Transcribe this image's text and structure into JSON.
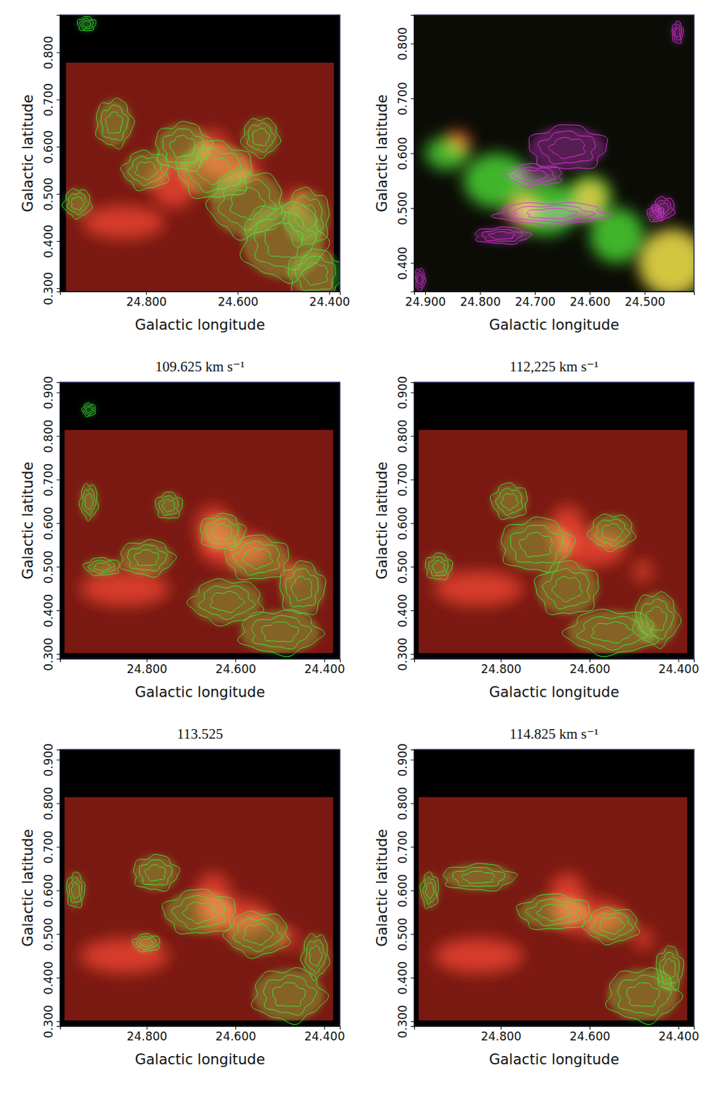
{
  "chart_data": [
    {
      "type": "image",
      "xlabel": "Galactic longitude",
      "ylabel": "Galactic latitude",
      "xlim": [
        24.988,
        24.377
      ],
      "ylim": [
        0.293,
        0.879
      ],
      "xticks": [
        {
          "value": 24.8,
          "label": "24.800"
        },
        {
          "value": 24.6,
          "label": "24.600"
        },
        {
          "value": 24.4,
          "label": "24.400"
        }
      ],
      "yticks": [
        {
          "value": 0.3,
          "label": "0.300"
        },
        {
          "value": 0.4,
          "label": "0.400"
        },
        {
          "value": 0.5,
          "label": "0.500"
        },
        {
          "value": 0.6,
          "label": "0.600"
        },
        {
          "value": 0.7,
          "label": "0.700"
        },
        {
          "value": 0.8,
          "label": "0.800"
        }
      ],
      "series": [
        {
          "type": "image",
          "color": "#7a1912",
          "values": [
            {
              "l": 24.6825,
              "b": 0.5355,
              "rl": 0.2925,
              "rb": 0.2425
            }
          ]
        },
        {
          "type": "glow",
          "color": "#c42a1a",
          "values": [
            {
              "l": 24.655,
              "b": 0.6,
              "rl": 0.035,
              "rb": 0.035
            },
            {
              "l": 24.62,
              "b": 0.555,
              "rl": 0.07,
              "rb": 0.03
            },
            {
              "l": 24.47,
              "b": 0.485,
              "rl": 0.022,
              "rb": 0.025
            },
            {
              "l": 24.74,
              "b": 0.52,
              "rl": 0.05,
              "rb": 0.05
            },
            {
              "l": 24.85,
              "b": 0.44,
              "rl": 0.09,
              "rb": 0.035
            }
          ]
        },
        {
          "type": "contour",
          "color": "#3ae83a",
          "values": [
            {
              "l": 24.72,
              "b": 0.6,
              "rl": 0.06,
              "rb": 0.05
            },
            {
              "l": 24.65,
              "b": 0.55,
              "rl": 0.08,
              "rb": 0.06
            },
            {
              "l": 24.58,
              "b": 0.48,
              "rl": 0.08,
              "rb": 0.07
            },
            {
              "l": 24.5,
              "b": 0.4,
              "rl": 0.09,
              "rb": 0.08
            },
            {
              "l": 24.43,
              "b": 0.33,
              "rl": 0.06,
              "rb": 0.05
            },
            {
              "l": 24.45,
              "b": 0.45,
              "rl": 0.05,
              "rb": 0.06
            },
            {
              "l": 24.95,
              "b": 0.48,
              "rl": 0.03,
              "rb": 0.03
            },
            {
              "l": 24.87,
              "b": 0.65,
              "rl": 0.04,
              "rb": 0.05
            },
            {
              "l": 24.93,
              "b": 0.86,
              "rl": 0.02,
              "rb": 0.015
            },
            {
              "l": 24.8,
              "b": 0.55,
              "rl": 0.05,
              "rb": 0.04
            },
            {
              "l": 24.55,
              "b": 0.62,
              "rl": 0.04,
              "rb": 0.04
            }
          ]
        }
      ]
    },
    {
      "type": "image",
      "xlabel": "Galactic longitude",
      "ylabel": "Galactic latitude",
      "xlim": [
        24.92,
        24.41
      ],
      "ylim": [
        0.348,
        0.852
      ],
      "xticks": [
        {
          "value": 24.9,
          "label": "24.900"
        },
        {
          "value": 24.8,
          "label": "24.800"
        },
        {
          "value": 24.7,
          "label": "24.700"
        },
        {
          "value": 24.6,
          "label": "24.600"
        },
        {
          "value": 24.5,
          "label": "24.500"
        }
      ],
      "yticks": [
        {
          "value": 0.4,
          "label": "0.400"
        },
        {
          "value": 0.5,
          "label": "0.500"
        },
        {
          "value": 0.6,
          "label": "0.600"
        },
        {
          "value": 0.7,
          "label": "0.700"
        },
        {
          "value": 0.8,
          "label": "0.800"
        }
      ],
      "series": [
        {
          "type": "image",
          "color": "#0b0c06",
          "values": [
            {
              "l": 24.665,
              "b": 0.6,
              "rl": 0.255,
              "rb": 0.252
            }
          ]
        },
        {
          "type": "glow",
          "color": "#d8401c",
          "values": [
            {
              "l": 24.84,
              "b": 0.62,
              "rl": 0.022,
              "rb": 0.022
            },
            {
              "l": 24.72,
              "b": 0.5,
              "rl": 0.03,
              "rb": 0.03
            },
            {
              "l": 24.45,
              "b": 0.4,
              "rl": 0.06,
              "rb": 0.06
            },
            {
              "l": 24.6,
              "b": 0.52,
              "rl": 0.03,
              "rb": 0.03
            }
          ]
        },
        {
          "type": "glow",
          "color": "#3cc42a",
          "values": [
            {
              "l": 24.77,
              "b": 0.55,
              "rl": 0.06,
              "rb": 0.05
            },
            {
              "l": 24.68,
              "b": 0.5,
              "rl": 0.06,
              "rb": 0.05
            },
            {
              "l": 24.6,
              "b": 0.52,
              "rl": 0.04,
              "rb": 0.04
            },
            {
              "l": 24.45,
              "b": 0.4,
              "rl": 0.06,
              "rb": 0.06
            },
            {
              "l": 24.55,
              "b": 0.45,
              "rl": 0.05,
              "rb": 0.05
            },
            {
              "l": 24.86,
              "b": 0.6,
              "rl": 0.04,
              "rb": 0.03
            }
          ]
        },
        {
          "type": "contour",
          "color": "#e030e0",
          "values": [
            {
              "l": 24.64,
              "b": 0.61,
              "rl": 0.07,
              "rb": 0.04
            },
            {
              "l": 24.7,
              "b": 0.56,
              "rl": 0.05,
              "rb": 0.02
            },
            {
              "l": 24.67,
              "b": 0.49,
              "rl": 0.1,
              "rb": 0.02
            },
            {
              "l": 24.76,
              "b": 0.45,
              "rl": 0.05,
              "rb": 0.015
            },
            {
              "l": 24.48,
              "b": 0.49,
              "rl": 0.015,
              "rb": 0.015
            },
            {
              "l": 24.465,
              "b": 0.5,
              "rl": 0.02,
              "rb": 0.02
            },
            {
              "l": 24.91,
              "b": 0.37,
              "rl": 0.01,
              "rb": 0.02
            },
            {
              "l": 24.44,
              "b": 0.82,
              "rl": 0.01,
              "rb": 0.02
            }
          ]
        }
      ]
    },
    {
      "type": "image",
      "title": "109.625 km s⁻¹",
      "xlabel": "Galactic longitude",
      "ylabel": "Galactic latitude",
      "xlim": [
        24.995,
        24.365
      ],
      "ylim": [
        0.289,
        0.923
      ],
      "xticks": [
        {
          "value": 24.8,
          "label": "24.800"
        },
        {
          "value": 24.6,
          "label": "24.600"
        },
        {
          "value": 24.4,
          "label": "24.400"
        }
      ],
      "yticks": [
        {
          "value": 0.3,
          "label": "0.300"
        },
        {
          "value": 0.4,
          "label": "0.400"
        },
        {
          "value": 0.5,
          "label": "0.500"
        },
        {
          "value": 0.6,
          "label": "0.600"
        },
        {
          "value": 0.7,
          "label": "0.700"
        },
        {
          "value": 0.8,
          "label": "0.800"
        },
        {
          "value": 0.9,
          "label": "0.900"
        }
      ],
      "series": [
        {
          "type": "image",
          "color": "#7a1912",
          "values": [
            {
              "l": 24.6825,
              "b": 0.558,
              "rl": 0.3025,
              "rb": 0.256
            }
          ]
        },
        {
          "type": "glow",
          "color": "#c42a1a",
          "values": [
            {
              "l": 24.65,
              "b": 0.59,
              "rl": 0.04,
              "rb": 0.05
            },
            {
              "l": 24.48,
              "b": 0.49,
              "rl": 0.02,
              "rb": 0.025
            },
            {
              "l": 24.6,
              "b": 0.54,
              "rl": 0.08,
              "rb": 0.04
            },
            {
              "l": 24.85,
              "b": 0.45,
              "rl": 0.1,
              "rb": 0.04
            }
          ]
        },
        {
          "type": "contour",
          "color": "#3ae83a",
          "values": [
            {
              "l": 24.63,
              "b": 0.58,
              "rl": 0.05,
              "rb": 0.04
            },
            {
              "l": 24.55,
              "b": 0.52,
              "rl": 0.07,
              "rb": 0.05
            },
            {
              "l": 24.62,
              "b": 0.42,
              "rl": 0.08,
              "rb": 0.05
            },
            {
              "l": 24.5,
              "b": 0.35,
              "rl": 0.09,
              "rb": 0.05
            },
            {
              "l": 24.45,
              "b": 0.45,
              "rl": 0.05,
              "rb": 0.06
            },
            {
              "l": 24.9,
              "b": 0.5,
              "rl": 0.04,
              "rb": 0.02
            },
            {
              "l": 24.93,
              "b": 0.65,
              "rl": 0.02,
              "rb": 0.04
            },
            {
              "l": 24.8,
              "b": 0.52,
              "rl": 0.06,
              "rb": 0.04
            },
            {
              "l": 24.75,
              "b": 0.64,
              "rl": 0.03,
              "rb": 0.03
            },
            {
              "l": 24.93,
              "b": 0.86,
              "rl": 0.015,
              "rb": 0.015
            }
          ]
        }
      ]
    },
    {
      "type": "image",
      "title": "112,225 km s⁻¹",
      "xlabel": "Galactic longitude",
      "ylabel": "Galactic latitude",
      "xlim": [
        24.995,
        24.365
      ],
      "ylim": [
        0.289,
        0.923
      ],
      "xticks": [
        {
          "value": 24.8,
          "label": "24.800"
        },
        {
          "value": 24.6,
          "label": "24.600"
        },
        {
          "value": 24.4,
          "label": "24.400"
        }
      ],
      "yticks": [
        {
          "value": 0.3,
          "label": "0.300"
        },
        {
          "value": 0.4,
          "label": "0.400"
        },
        {
          "value": 0.5,
          "label": "0.500"
        },
        {
          "value": 0.6,
          "label": "0.600"
        },
        {
          "value": 0.7,
          "label": "0.700"
        },
        {
          "value": 0.8,
          "label": "0.800"
        },
        {
          "value": 0.9,
          "label": "0.900"
        }
      ],
      "series": [
        {
          "type": "image",
          "color": "#7a1912",
          "values": [
            {
              "l": 24.6825,
              "b": 0.558,
              "rl": 0.3025,
              "rb": 0.256
            }
          ]
        },
        {
          "type": "glow",
          "color": "#c42a1a",
          "values": [
            {
              "l": 24.65,
              "b": 0.59,
              "rl": 0.04,
              "rb": 0.05
            },
            {
              "l": 24.48,
              "b": 0.49,
              "rl": 0.02,
              "rb": 0.025
            },
            {
              "l": 24.6,
              "b": 0.54,
              "rl": 0.08,
              "rb": 0.04
            },
            {
              "l": 24.85,
              "b": 0.45,
              "rl": 0.1,
              "rb": 0.04
            }
          ]
        },
        {
          "type": "contour",
          "color": "#3ae83a",
          "values": [
            {
              "l": 24.72,
              "b": 0.55,
              "rl": 0.08,
              "rb": 0.06
            },
            {
              "l": 24.65,
              "b": 0.45,
              "rl": 0.07,
              "rb": 0.06
            },
            {
              "l": 24.55,
              "b": 0.35,
              "rl": 0.1,
              "rb": 0.05
            },
            {
              "l": 24.45,
              "b": 0.38,
              "rl": 0.05,
              "rb": 0.06
            },
            {
              "l": 24.94,
              "b": 0.5,
              "rl": 0.03,
              "rb": 0.03
            },
            {
              "l": 24.78,
              "b": 0.65,
              "rl": 0.04,
              "rb": 0.04
            },
            {
              "l": 24.55,
              "b": 0.58,
              "rl": 0.05,
              "rb": 0.04
            }
          ]
        }
      ]
    },
    {
      "type": "image",
      "title": "113.525",
      "xlabel": "Galactic longitude",
      "ylabel": "Galactic latitude",
      "xlim": [
        24.995,
        24.365
      ],
      "ylim": [
        0.289,
        0.923
      ],
      "xticks": [
        {
          "value": 24.8,
          "label": "24.800"
        },
        {
          "value": 24.6,
          "label": "24.600"
        },
        {
          "value": 24.4,
          "label": "24.400"
        }
      ],
      "yticks": [
        {
          "value": 0.3,
          "label": "0.300"
        },
        {
          "value": 0.4,
          "label": "0.400"
        },
        {
          "value": 0.5,
          "label": "0.500"
        },
        {
          "value": 0.6,
          "label": "0.600"
        },
        {
          "value": 0.7,
          "label": "0.700"
        },
        {
          "value": 0.8,
          "label": "0.800"
        },
        {
          "value": 0.9,
          "label": "0.900"
        }
      ],
      "series": [
        {
          "type": "image",
          "color": "#7a1912",
          "values": [
            {
              "l": 24.6825,
              "b": 0.558,
              "rl": 0.3025,
              "rb": 0.256
            }
          ]
        },
        {
          "type": "glow",
          "color": "#c42a1a",
          "values": [
            {
              "l": 24.65,
              "b": 0.59,
              "rl": 0.04,
              "rb": 0.05
            },
            {
              "l": 24.48,
              "b": 0.49,
              "rl": 0.02,
              "rb": 0.025
            },
            {
              "l": 24.6,
              "b": 0.54,
              "rl": 0.08,
              "rb": 0.04
            },
            {
              "l": 24.85,
              "b": 0.45,
              "rl": 0.1,
              "rb": 0.04
            }
          ]
        },
        {
          "type": "contour",
          "color": "#3ae83a",
          "values": [
            {
              "l": 24.78,
              "b": 0.64,
              "rl": 0.05,
              "rb": 0.04
            },
            {
              "l": 24.68,
              "b": 0.55,
              "rl": 0.08,
              "rb": 0.05
            },
            {
              "l": 24.55,
              "b": 0.5,
              "rl": 0.07,
              "rb": 0.05
            },
            {
              "l": 24.48,
              "b": 0.36,
              "rl": 0.08,
              "rb": 0.06
            },
            {
              "l": 24.96,
              "b": 0.6,
              "rl": 0.02,
              "rb": 0.04
            },
            {
              "l": 24.8,
              "b": 0.48,
              "rl": 0.03,
              "rb": 0.02
            },
            {
              "l": 24.42,
              "b": 0.45,
              "rl": 0.03,
              "rb": 0.05
            }
          ]
        }
      ]
    },
    {
      "type": "image",
      "title": "114.825 km s⁻¹",
      "xlabel": "Galactic longitude",
      "ylabel": "Galactic latitude",
      "xlim": [
        24.995,
        24.365
      ],
      "ylim": [
        0.289,
        0.923
      ],
      "xticks": [
        {
          "value": 24.8,
          "label": "24.800"
        },
        {
          "value": 24.6,
          "label": "24.600"
        },
        {
          "value": 24.4,
          "label": "24.400"
        }
      ],
      "yticks": [
        {
          "value": 0.3,
          "label": "0.300"
        },
        {
          "value": 0.4,
          "label": "0.400"
        },
        {
          "value": 0.5,
          "label": "0.500"
        },
        {
          "value": 0.6,
          "label": "0.600"
        },
        {
          "value": 0.7,
          "label": "0.700"
        },
        {
          "value": 0.8,
          "label": "0.800"
        },
        {
          "value": 0.9,
          "label": "0.900"
        }
      ],
      "series": [
        {
          "type": "image",
          "color": "#7a1912",
          "values": [
            {
              "l": 24.6825,
              "b": 0.558,
              "rl": 0.3025,
              "rb": 0.256
            }
          ]
        },
        {
          "type": "glow",
          "color": "#c42a1a",
          "values": [
            {
              "l": 24.65,
              "b": 0.59,
              "rl": 0.04,
              "rb": 0.05
            },
            {
              "l": 24.48,
              "b": 0.49,
              "rl": 0.02,
              "rb": 0.025
            },
            {
              "l": 24.6,
              "b": 0.54,
              "rl": 0.08,
              "rb": 0.04
            },
            {
              "l": 24.85,
              "b": 0.45,
              "rl": 0.1,
              "rb": 0.04
            }
          ]
        },
        {
          "type": "contour",
          "color": "#3ae83a",
          "values": [
            {
              "l": 24.85,
              "b": 0.63,
              "rl": 0.08,
              "rb": 0.03
            },
            {
              "l": 24.68,
              "b": 0.55,
              "rl": 0.08,
              "rb": 0.04
            },
            {
              "l": 24.55,
              "b": 0.52,
              "rl": 0.06,
              "rb": 0.04
            },
            {
              "l": 24.48,
              "b": 0.36,
              "rl": 0.08,
              "rb": 0.06
            },
            {
              "l": 24.42,
              "b": 0.42,
              "rl": 0.03,
              "rb": 0.05
            },
            {
              "l": 24.96,
              "b": 0.6,
              "rl": 0.02,
              "rb": 0.04
            }
          ]
        }
      ]
    }
  ]
}
